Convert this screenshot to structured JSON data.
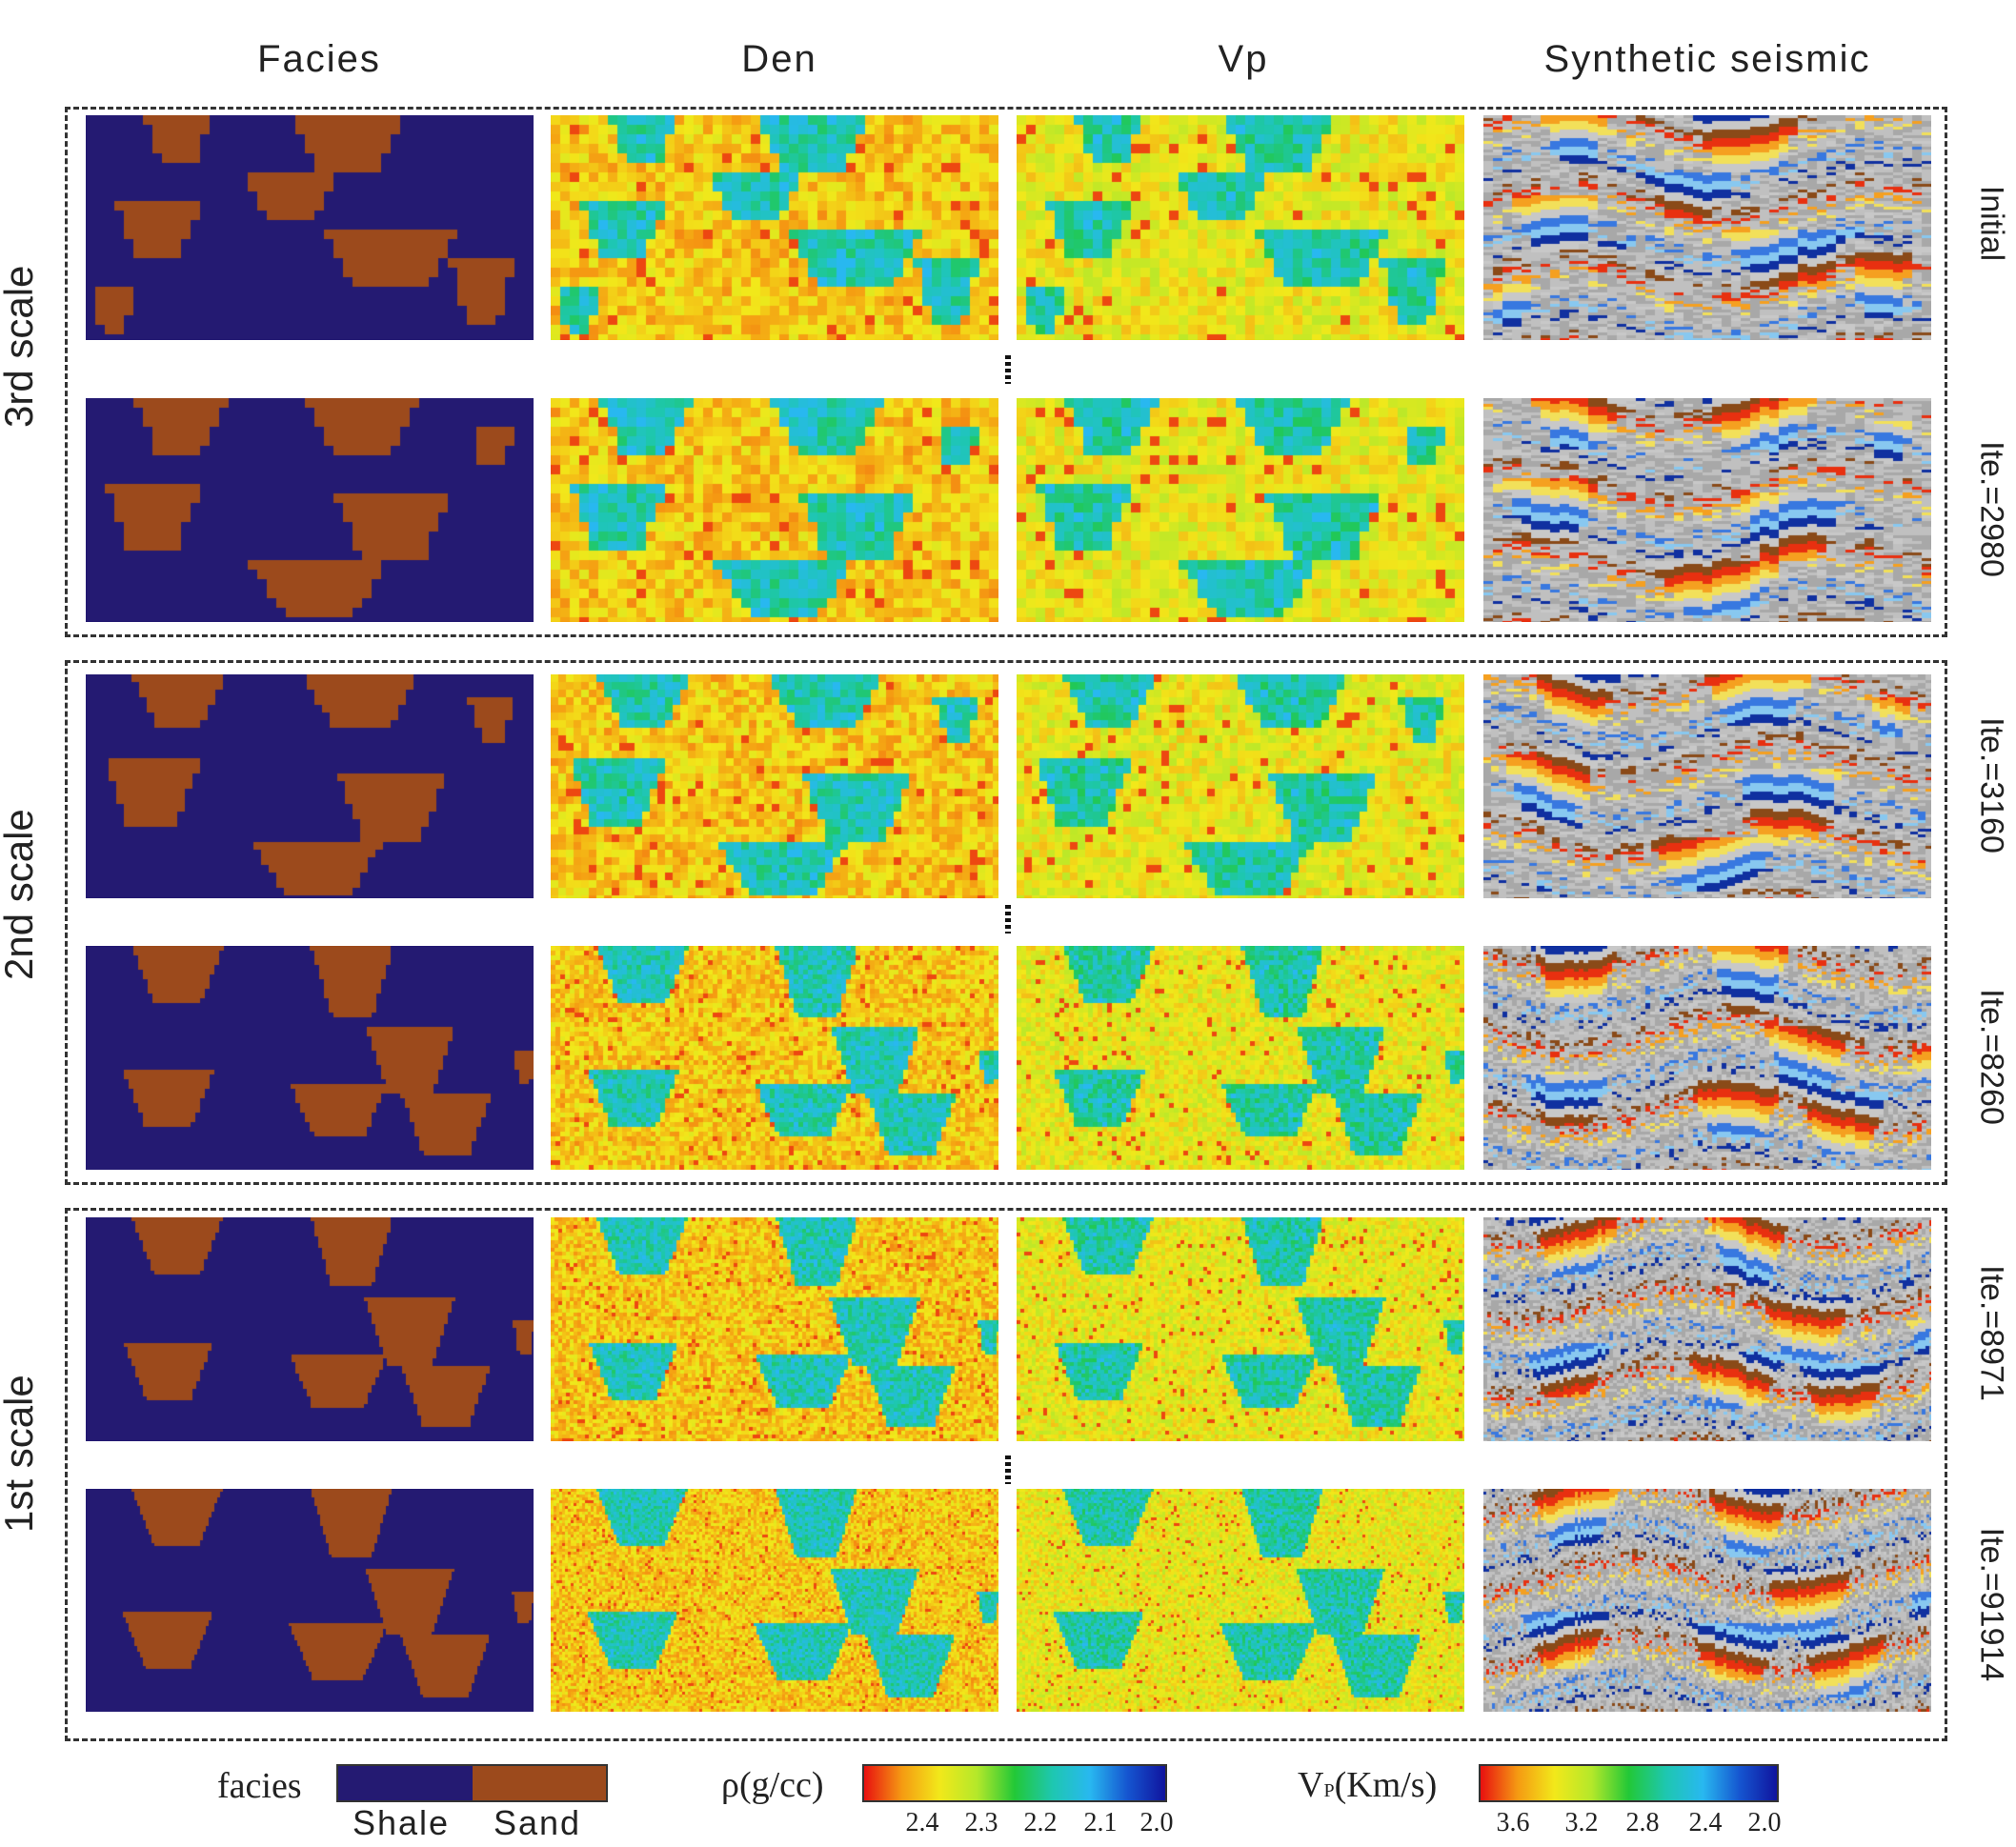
{
  "columns": [
    "Facies",
    "Den",
    "Vp",
    "Synthetic seismic"
  ],
  "scales": [
    "3rd scale",
    "2nd scale",
    "1st scale"
  ],
  "rows": [
    "Initial",
    "Ite.=2980",
    "Ite.=3160",
    "Ite.=8260",
    "Ite.=8971",
    "Ite.=91914"
  ],
  "legend": {
    "facies": {
      "title": "facies",
      "classes": [
        "Shale",
        "Sand"
      ],
      "colors": [
        "#241a72",
        "#9c4a1c"
      ]
    },
    "density": {
      "title": "ρ(g/cc)",
      "ticks": [
        "2.4",
        "2.3",
        "2.2",
        "2.1",
        "2.0"
      ]
    },
    "vp": {
      "title_main": "V",
      "title_sub": "P",
      "title_rest": "(Km/s)",
      "ticks": [
        "3.6",
        "3.2",
        "2.8",
        "2.4",
        "2.0"
      ]
    }
  },
  "colors": {
    "shale": "#241a72",
    "sand": "#9c4a1c",
    "property_background": "#f0c030",
    "property_sand": "#30d0d0",
    "seismic_gray": "#b8b8b8"
  }
}
